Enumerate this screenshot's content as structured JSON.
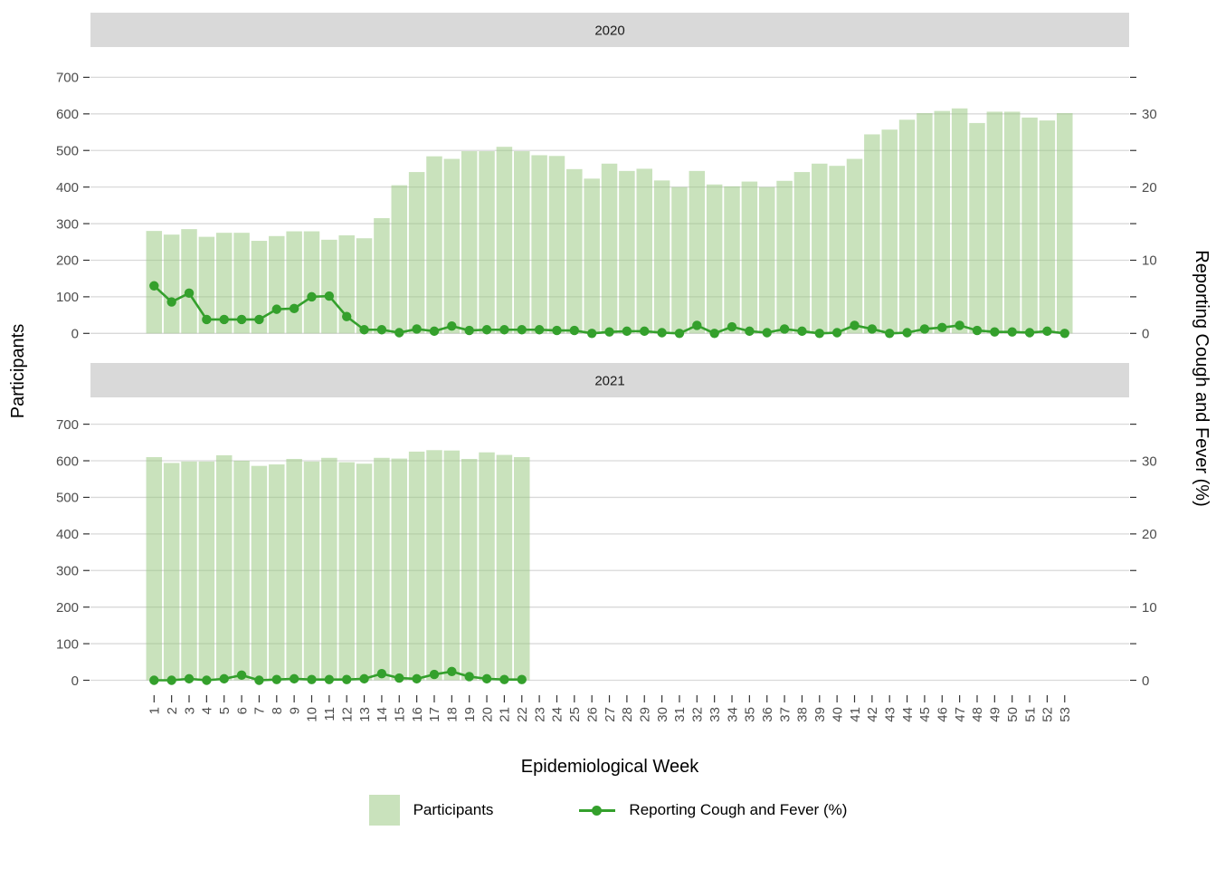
{
  "figure": {
    "colors": {
      "bar_fill_rendered": "#c9e2bc",
      "bar_fill_base": "#93c579",
      "line": "#34a02c",
      "grid": "#d9d9d9",
      "strip_background": "#d9d9d9",
      "axis_tick_text": "#4d4d4d"
    },
    "legend": {
      "items": [
        {
          "label": "Participants",
          "key": "fill-swatch"
        },
        {
          "label": "Reporting Cough and Fever (%)",
          "key": "line-with-point"
        }
      ]
    }
  },
  "chart_data": {
    "type": "bar+line",
    "xlabel": "Epidemiological Week",
    "ylabel_left": "Participants",
    "ylabel_right": "Reporting Cough and Fever (%)",
    "ylim_left": [
      0,
      700
    ],
    "ylim_right": [
      0,
      35
    ],
    "left_ticks": [
      0,
      100,
      200,
      300,
      400,
      500,
      600,
      700
    ],
    "right_ticks": [
      0,
      10,
      20,
      30
    ],
    "grid": true,
    "legend_position": "bottom",
    "x": [
      1,
      2,
      3,
      4,
      5,
      6,
      7,
      8,
      9,
      10,
      11,
      12,
      13,
      14,
      15,
      16,
      17,
      18,
      19,
      20,
      21,
      22,
      23,
      24,
      25,
      26,
      27,
      28,
      29,
      30,
      31,
      32,
      33,
      34,
      35,
      36,
      37,
      38,
      39,
      40,
      41,
      42,
      43,
      44,
      45,
      46,
      47,
      48,
      49,
      50,
      51,
      52,
      53
    ],
    "facets": [
      {
        "label": "2020",
        "series": [
          {
            "name": "Participants",
            "type": "bar",
            "axis": "left",
            "values": [
              280,
              270,
              285,
              264,
              275,
              275,
              253,
              266,
              279,
              279,
              256,
              268,
              260,
              315,
              405,
              441,
              484,
              477,
              498,
              498,
              510,
              498,
              487,
              485,
              449,
              423,
              464,
              444,
              450,
              418,
              400,
              444,
              407,
              402,
              415,
              400,
              417,
              441,
              464,
              458,
              477,
              544,
              557,
              584,
              602,
              608,
              615,
              575,
              606,
              606,
              590,
              582,
              602
            ]
          },
          {
            "name": "Reporting Cough and Fever (%)",
            "type": "line",
            "axis": "right",
            "values": [
              6.5,
              4.3,
              5.5,
              1.9,
              1.9,
              1.9,
              1.9,
              3.3,
              3.4,
              5.0,
              5.1,
              2.3,
              0.5,
              0.5,
              0.1,
              0.6,
              0.3,
              1.0,
              0.4,
              0.5,
              0.5,
              0.5,
              0.5,
              0.4,
              0.4,
              0.0,
              0.2,
              0.3,
              0.3,
              0.1,
              0.0,
              1.1,
              0.0,
              0.9,
              0.3,
              0.1,
              0.6,
              0.3,
              0.0,
              0.1,
              1.1,
              0.6,
              0.0,
              0.1,
              0.6,
              0.8,
              1.1,
              0.4,
              0.2,
              0.2,
              0.1,
              0.3,
              0.0
            ]
          }
        ]
      },
      {
        "label": "2021",
        "series": [
          {
            "name": "Participants",
            "type": "bar",
            "axis": "left",
            "values": [
              610,
              594,
              598,
              598,
              615,
              600,
              586,
              590,
              605,
              598,
              608,
              596,
              592,
              608,
              606,
              625,
              629,
              628,
              605,
              623,
              616,
              610
            ]
          },
          {
            "name": "Reporting Cough and Fever (%)",
            "type": "line",
            "axis": "right",
            "values": [
              0.0,
              0.0,
              0.2,
              0.0,
              0.2,
              0.7,
              0.0,
              0.1,
              0.2,
              0.1,
              0.1,
              0.1,
              0.2,
              0.9,
              0.3,
              0.2,
              0.8,
              1.2,
              0.5,
              0.2,
              0.1,
              0.1
            ]
          }
        ]
      }
    ]
  }
}
